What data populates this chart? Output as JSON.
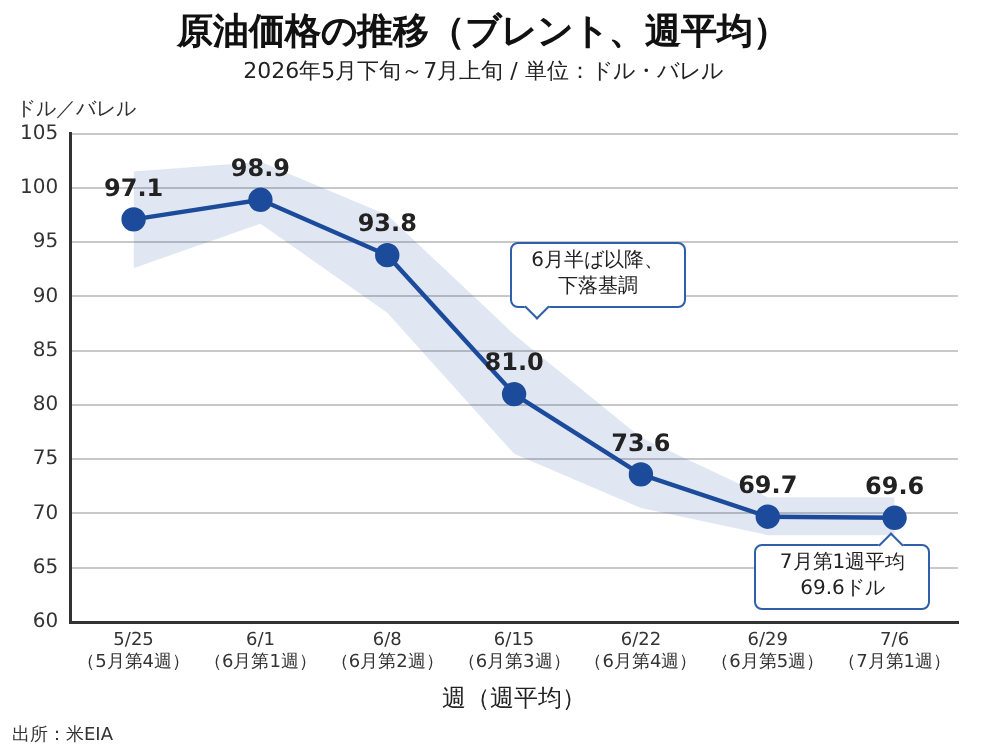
{
  "chart_data": {
    "type": "line",
    "title": "原油価格の推移（ブレント、週平均）",
    "subtitle": "2026年5月下旬～7月上旬 / 単位：ドル・バレル",
    "ylabel": "ドル／バレル",
    "xlabel": "週（週平均）",
    "categories": [
      "5/25\n（5月第4週）",
      "6/1\n（6月第1週）",
      "6/8\n（6月第2週）",
      "6/15\n（6月第3週）",
      "6/22\n（6月第4週）",
      "6/29\n（6月第5週）",
      "7/6\n（7月第1週）"
    ],
    "series": [
      {
        "color": "#1c4b9b",
        "values": [
          97.1,
          98.9,
          93.8,
          81.0,
          73.6,
          69.7,
          69.6
        ],
        "value_labels": [
          "97.1",
          "98.9",
          "93.8",
          "81.0",
          "73.6",
          "69.7",
          "69.6"
        ],
        "lower": [
          92.6,
          96.7,
          88.5,
          75.5,
          70.5,
          68.0,
          68.0
        ],
        "upper": [
          101.5,
          102.4,
          97.5,
          86.5,
          77.0,
          71.5,
          71.5
        ]
      }
    ],
    "ylim": [
      60,
      105
    ],
    "yticks": [
      60,
      65,
      70,
      75,
      80,
      85,
      90,
      95,
      100,
      105
    ],
    "grid": "y",
    "legend": false,
    "marker": "circle",
    "line_style": "solid",
    "annotations": [
      "6月半ば以降、下落基調",
      {
        "text": "7月第1週平均69.6ドル",
        "x": "7/6\n（7月第1週）",
        "y": 69.6
      },
      "出所：米EIA"
    ]
  }
}
